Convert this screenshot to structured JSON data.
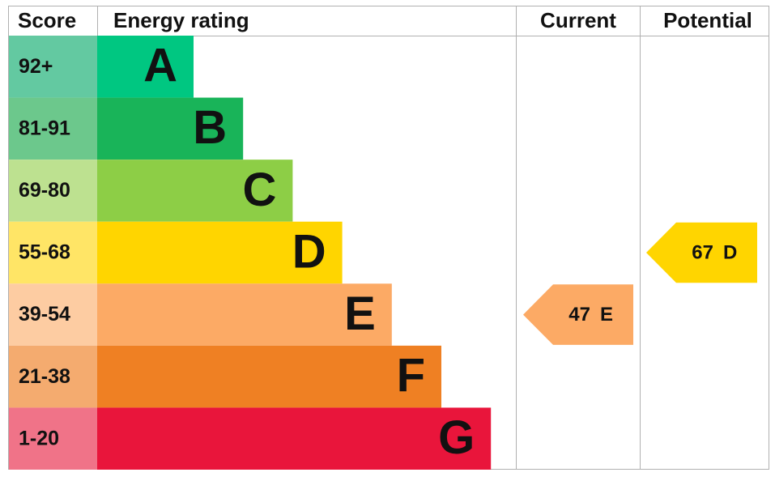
{
  "header": {
    "score": "Score",
    "rating": "Energy rating",
    "current": "Current",
    "potential": "Potential"
  },
  "bands": [
    {
      "score": "92+",
      "letter": "A",
      "color": "#00c781",
      "score_color": "#63c9a1"
    },
    {
      "score": "81-91",
      "letter": "B",
      "color": "#19b459",
      "score_color": "#6cc88c"
    },
    {
      "score": "69-80",
      "letter": "C",
      "color": "#8dce46",
      "score_color": "#bde190"
    },
    {
      "score": "55-68",
      "letter": "D",
      "color": "#ffd500",
      "score_color": "#ffe566"
    },
    {
      "score": "39-54",
      "letter": "E",
      "color": "#fcaa65",
      "score_color": "#fdcca2"
    },
    {
      "score": "21-38",
      "letter": "F",
      "color": "#ef8023",
      "score_color": "#f4ab6f"
    },
    {
      "score": "1-20",
      "letter": "G",
      "color": "#e9153b",
      "score_color": "#f07388"
    }
  ],
  "current": {
    "value": 47,
    "letter": "E"
  },
  "potential": {
    "value": 67,
    "letter": "D"
  }
}
